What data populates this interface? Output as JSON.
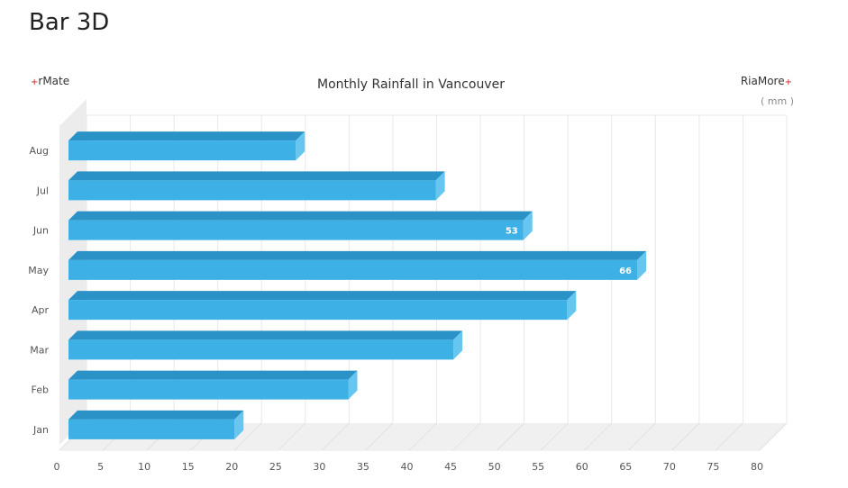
{
  "page": {
    "title": "Bar 3D"
  },
  "brand": {
    "left_plus": "+",
    "left_text": "rMate",
    "right_text": "RiaMore",
    "right_plus": "+"
  },
  "chart_data": {
    "type": "bar",
    "orientation": "horizontal",
    "title": "Monthly Rainfall in Vancouver",
    "unit_label": "( mm )",
    "categories": [
      "Jan",
      "Feb",
      "Mar",
      "Apr",
      "May",
      "Jun",
      "Jul",
      "Aug"
    ],
    "values": [
      20,
      33,
      45,
      58,
      66,
      53,
      43,
      27
    ],
    "data_labels": {
      "May": "66",
      "Jun": "53"
    },
    "xlim": [
      0,
      80
    ],
    "xticks": [
      0,
      5,
      10,
      15,
      20,
      25,
      30,
      35,
      40,
      45,
      50,
      55,
      60,
      65,
      70,
      75,
      80
    ],
    "grid": true,
    "colors": {
      "bar_front": "#3db0e5",
      "bar_top": "#2b92c7",
      "bar_side": "#66c6f0"
    }
  }
}
